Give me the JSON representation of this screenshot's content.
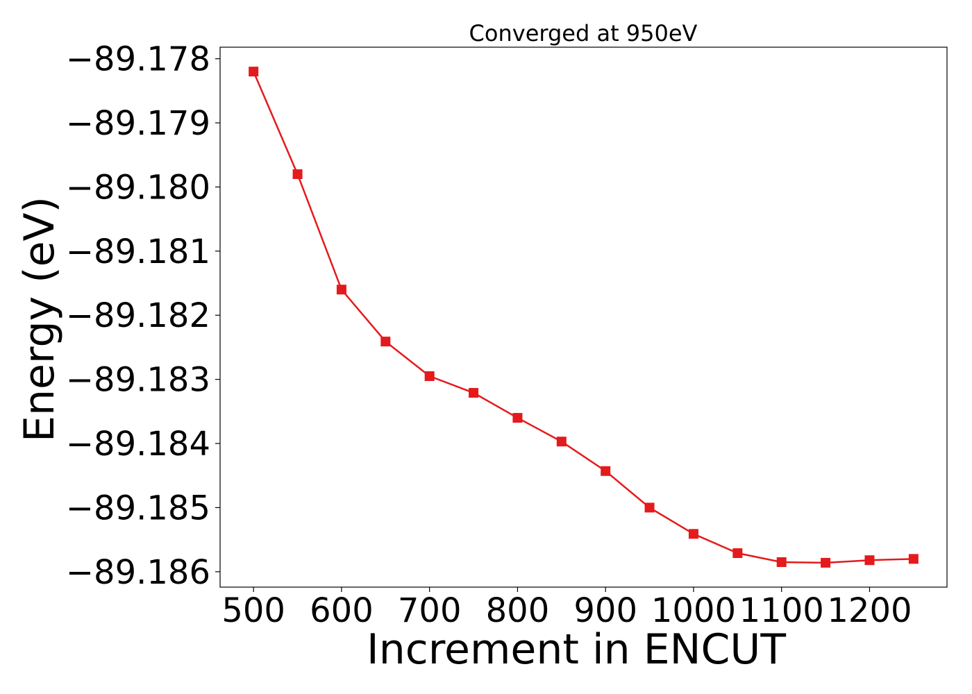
{
  "chart_data": {
    "type": "line",
    "title": "Converged at 950eV",
    "xlabel": "Increment in ENCUT",
    "ylabel": "Energy (eV)",
    "xlim": [
      462,
      1288
    ],
    "ylim": [
      -89.18624,
      -89.17782
    ],
    "x_ticks": [
      500,
      600,
      700,
      800,
      900,
      1000,
      1100,
      1200
    ],
    "x_tick_labels": [
      "500",
      "600",
      "700",
      "800",
      "900",
      "1000",
      "1100",
      "1200"
    ],
    "y_ticks": [
      -89.178,
      -89.179,
      -89.18,
      -89.181,
      -89.182,
      -89.183,
      -89.184,
      -89.185,
      -89.186
    ],
    "y_tick_labels": [
      "−89.178",
      "−89.179",
      "−89.180",
      "−89.181",
      "−89.182",
      "−89.183",
      "−89.184",
      "−89.185",
      "−89.186"
    ],
    "grid": false,
    "marker": "square",
    "color": "#e41a1c",
    "series": [
      {
        "x": [
          500,
          550,
          600,
          650,
          700,
          750,
          800,
          850,
          900,
          950,
          1000,
          1050,
          1100,
          1150,
          1200,
          1250
        ],
        "y": [
          -89.1782,
          -89.1798,
          -89.1816,
          -89.18241,
          -89.18295,
          -89.18321,
          -89.1836,
          -89.18397,
          -89.18443,
          -89.185,
          -89.18541,
          -89.18571,
          -89.18585,
          -89.18586,
          -89.18582,
          -89.1858
        ]
      }
    ]
  }
}
